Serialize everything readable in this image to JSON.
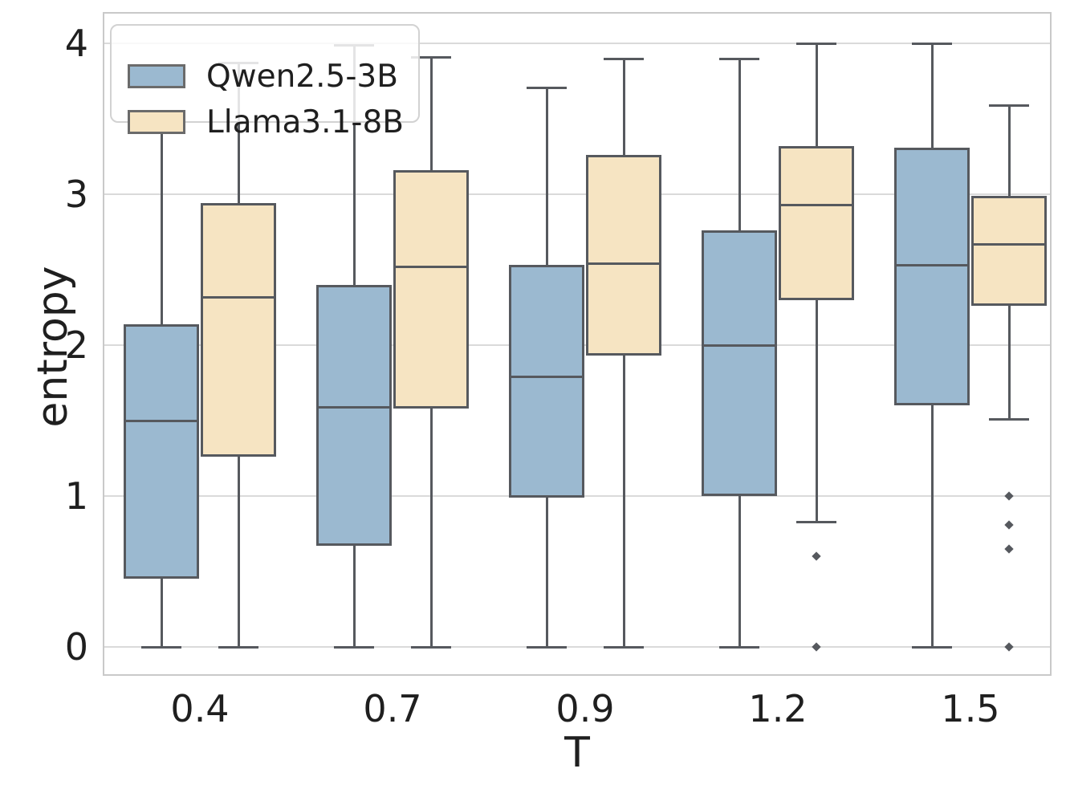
{
  "chart_data": {
    "type": "boxplot",
    "title": "",
    "xlabel": "T",
    "ylabel": "entropy",
    "x_categories": [
      "0.4",
      "0.7",
      "0.9",
      "1.2",
      "1.5"
    ],
    "y_ticks": [
      0,
      1,
      2,
      3,
      4
    ],
    "ylim": [
      -0.19,
      4.21
    ],
    "grid": "horizontal-only",
    "legend_position": "upper-left",
    "series": [
      {
        "name": "Qwen2.5-3B",
        "fill_color": "#9BB9D0",
        "boxes": [
          {
            "x": "0.4",
            "whisker_low": 0.0,
            "q1": 0.45,
            "median": 1.5,
            "q3": 2.14,
            "whisker_high": 3.47,
            "outliers": []
          },
          {
            "x": "0.7",
            "whisker_low": 0.0,
            "q1": 0.67,
            "median": 1.59,
            "q3": 2.4,
            "whisker_high": 3.99,
            "outliers": []
          },
          {
            "x": "0.9",
            "whisker_low": 0.0,
            "q1": 0.99,
            "median": 1.79,
            "q3": 2.53,
            "whisker_high": 3.71,
            "outliers": []
          },
          {
            "x": "1.2",
            "whisker_low": 0.0,
            "q1": 1.0,
            "median": 2.0,
            "q3": 2.76,
            "whisker_high": 3.9,
            "outliers": []
          },
          {
            "x": "1.5",
            "whisker_low": 0.0,
            "q1": 1.6,
            "median": 2.53,
            "q3": 3.31,
            "whisker_high": 4.0,
            "outliers": []
          }
        ]
      },
      {
        "name": "Llama3.1-8B",
        "fill_color": "#F6E4C2",
        "boxes": [
          {
            "x": "0.4",
            "whisker_low": 0.0,
            "q1": 1.26,
            "median": 2.32,
            "q3": 2.94,
            "whisker_high": 3.87,
            "outliers": []
          },
          {
            "x": "0.7",
            "whisker_low": 0.0,
            "q1": 1.58,
            "median": 2.52,
            "q3": 3.16,
            "whisker_high": 3.91,
            "outliers": []
          },
          {
            "x": "0.9",
            "whisker_low": 0.0,
            "q1": 1.93,
            "median": 2.54,
            "q3": 3.26,
            "whisker_high": 3.9,
            "outliers": []
          },
          {
            "x": "1.2",
            "whisker_low": 0.83,
            "q1": 2.3,
            "median": 2.93,
            "q3": 3.32,
            "whisker_high": 4.0,
            "outliers": [
              0.6,
              0.0
            ]
          },
          {
            "x": "1.5",
            "whisker_low": 1.51,
            "q1": 2.26,
            "median": 2.67,
            "q3": 2.99,
            "whisker_high": 3.59,
            "outliers": [
              1.0,
              0.81,
              0.65,
              0.0
            ]
          }
        ]
      }
    ],
    "colors": {
      "box_edge": "#56595e",
      "gridline": "#dadada",
      "spine": "#c9c9c9",
      "text": "#1f1f1f",
      "legend_border": "#d2d2d2"
    }
  }
}
